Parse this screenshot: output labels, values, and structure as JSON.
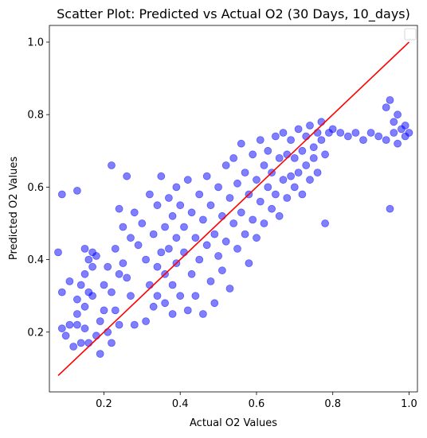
{
  "chart_data": {
    "type": "scatter",
    "title": "Scatter Plot: Predicted vs Actual O2 (30 Days, 10_days)",
    "xlabel": "Actual O2 Values",
    "ylabel": "Predicted O2 Values",
    "xlim": [
      0.057,
      1.022
    ],
    "ylim": [
      0.035,
      1.046
    ],
    "xticks": [
      "0.2",
      "0.4",
      "0.6",
      "0.8",
      "1.0"
    ],
    "yticks": [
      "0.2",
      "0.4",
      "0.6",
      "0.8",
      "1.0"
    ],
    "grid": false,
    "legend": {
      "placement": "top-right",
      "entries": []
    },
    "colors": {
      "points": "#0000ff",
      "reference_line": "#ff0000"
    },
    "reference_line": {
      "x": [
        0.08,
        1.0
      ],
      "y": [
        0.08,
        1.0
      ]
    },
    "series": [
      {
        "points": [
          [
            0.08,
            0.42
          ],
          [
            0.09,
            0.58
          ],
          [
            0.09,
            0.31
          ],
          [
            0.09,
            0.21
          ],
          [
            0.1,
            0.19
          ],
          [
            0.11,
            0.34
          ],
          [
            0.11,
            0.22
          ],
          [
            0.12,
            0.16
          ],
          [
            0.13,
            0.59
          ],
          [
            0.13,
            0.29
          ],
          [
            0.13,
            0.25
          ],
          [
            0.13,
            0.22
          ],
          [
            0.14,
            0.33
          ],
          [
            0.14,
            0.17
          ],
          [
            0.15,
            0.43
          ],
          [
            0.15,
            0.36
          ],
          [
            0.15,
            0.27
          ],
          [
            0.15,
            0.21
          ],
          [
            0.16,
            0.4
          ],
          [
            0.16,
            0.31
          ],
          [
            0.16,
            0.17
          ],
          [
            0.17,
            0.42
          ],
          [
            0.17,
            0.38
          ],
          [
            0.17,
            0.3
          ],
          [
            0.18,
            0.19
          ],
          [
            0.18,
            0.41
          ],
          [
            0.19,
            0.14
          ],
          [
            0.19,
            0.23
          ],
          [
            0.2,
            0.33
          ],
          [
            0.2,
            0.26
          ],
          [
            0.21,
            0.38
          ],
          [
            0.21,
            0.2
          ],
          [
            0.22,
            0.66
          ],
          [
            0.22,
            0.31
          ],
          [
            0.22,
            0.17
          ],
          [
            0.23,
            0.43
          ],
          [
            0.23,
            0.26
          ],
          [
            0.24,
            0.54
          ],
          [
            0.24,
            0.36
          ],
          [
            0.24,
            0.22
          ],
          [
            0.25,
            0.49
          ],
          [
            0.25,
            0.39
          ],
          [
            0.26,
            0.63
          ],
          [
            0.26,
            0.35
          ],
          [
            0.27,
            0.46
          ],
          [
            0.27,
            0.3
          ],
          [
            0.28,
            0.53
          ],
          [
            0.28,
            0.22
          ],
          [
            0.29,
            0.44
          ],
          [
            0.3,
            0.5
          ],
          [
            0.31,
            0.4
          ],
          [
            0.31,
            0.23
          ],
          [
            0.32,
            0.58
          ],
          [
            0.32,
            0.33
          ],
          [
            0.33,
            0.47
          ],
          [
            0.33,
            0.27
          ],
          [
            0.34,
            0.55
          ],
          [
            0.34,
            0.38
          ],
          [
            0.34,
            0.3
          ],
          [
            0.35,
            0.63
          ],
          [
            0.35,
            0.42
          ],
          [
            0.36,
            0.49
          ],
          [
            0.36,
            0.36
          ],
          [
            0.36,
            0.28
          ],
          [
            0.37,
            0.57
          ],
          [
            0.37,
            0.43
          ],
          [
            0.38,
            0.52
          ],
          [
            0.38,
            0.33
          ],
          [
            0.38,
            0.25
          ],
          [
            0.39,
            0.6
          ],
          [
            0.39,
            0.46
          ],
          [
            0.39,
            0.39
          ],
          [
            0.4,
            0.55
          ],
          [
            0.4,
            0.3
          ],
          [
            0.41,
            0.49
          ],
          [
            0.41,
            0.42
          ],
          [
            0.42,
            0.62
          ],
          [
            0.42,
            0.26
          ],
          [
            0.43,
            0.53
          ],
          [
            0.43,
            0.36
          ],
          [
            0.44,
            0.46
          ],
          [
            0.44,
            0.3
          ],
          [
            0.45,
            0.58
          ],
          [
            0.45,
            0.4
          ],
          [
            0.46,
            0.51
          ],
          [
            0.46,
            0.25
          ],
          [
            0.47,
            0.63
          ],
          [
            0.47,
            0.44
          ],
          [
            0.48,
            0.55
          ],
          [
            0.48,
            0.34
          ],
          [
            0.49,
            0.47
          ],
          [
            0.49,
            0.28
          ],
          [
            0.5,
            0.6
          ],
          [
            0.5,
            0.41
          ],
          [
            0.51,
            0.52
          ],
          [
            0.51,
            0.37
          ],
          [
            0.52,
            0.66
          ],
          [
            0.52,
            0.45
          ],
          [
            0.53,
            0.57
          ],
          [
            0.53,
            0.32
          ],
          [
            0.54,
            0.5
          ],
          [
            0.54,
            0.68
          ],
          [
            0.55,
            0.61
          ],
          [
            0.55,
            0.43
          ],
          [
            0.56,
            0.72
          ],
          [
            0.56,
            0.53
          ],
          [
            0.57,
            0.64
          ],
          [
            0.57,
            0.47
          ],
          [
            0.58,
            0.58
          ],
          [
            0.58,
            0.39
          ],
          [
            0.59,
            0.69
          ],
          [
            0.59,
            0.51
          ],
          [
            0.6,
            0.62
          ],
          [
            0.6,
            0.46
          ],
          [
            0.61,
            0.73
          ],
          [
            0.61,
            0.56
          ],
          [
            0.62,
            0.66
          ],
          [
            0.62,
            0.5
          ],
          [
            0.63,
            0.6
          ],
          [
            0.63,
            0.7
          ],
          [
            0.64,
            0.54
          ],
          [
            0.64,
            0.64
          ],
          [
            0.65,
            0.74
          ],
          [
            0.65,
            0.58
          ],
          [
            0.66,
            0.68
          ],
          [
            0.66,
            0.52
          ],
          [
            0.67,
            0.62
          ],
          [
            0.67,
            0.75
          ],
          [
            0.68,
            0.57
          ],
          [
            0.68,
            0.69
          ],
          [
            0.69,
            0.63
          ],
          [
            0.69,
            0.73
          ],
          [
            0.7,
            0.6
          ],
          [
            0.7,
            0.68
          ],
          [
            0.71,
            0.76
          ],
          [
            0.71,
            0.64
          ],
          [
            0.72,
            0.7
          ],
          [
            0.72,
            0.58
          ],
          [
            0.73,
            0.74
          ],
          [
            0.73,
            0.66
          ],
          [
            0.74,
            0.77
          ],
          [
            0.74,
            0.62
          ],
          [
            0.75,
            0.71
          ],
          [
            0.75,
            0.68
          ],
          [
            0.76,
            0.75
          ],
          [
            0.76,
            0.64
          ],
          [
            0.77,
            0.73
          ],
          [
            0.77,
            0.78
          ],
          [
            0.78,
            0.69
          ],
          [
            0.78,
            0.5
          ],
          [
            0.79,
            0.75
          ],
          [
            0.8,
            0.76
          ],
          [
            0.82,
            0.75
          ],
          [
            0.84,
            0.74
          ],
          [
            0.86,
            0.75
          ],
          [
            0.88,
            0.73
          ],
          [
            0.9,
            0.75
          ],
          [
            0.92,
            0.74
          ],
          [
            0.94,
            0.82
          ],
          [
            0.94,
            0.73
          ],
          [
            0.95,
            0.84
          ],
          [
            0.95,
            0.54
          ],
          [
            0.96,
            0.78
          ],
          [
            0.96,
            0.75
          ],
          [
            0.97,
            0.8
          ],
          [
            0.97,
            0.72
          ],
          [
            0.98,
            0.76
          ],
          [
            0.99,
            0.77
          ],
          [
            0.99,
            0.74
          ],
          [
            1.0,
            0.75
          ]
        ]
      }
    ]
  }
}
